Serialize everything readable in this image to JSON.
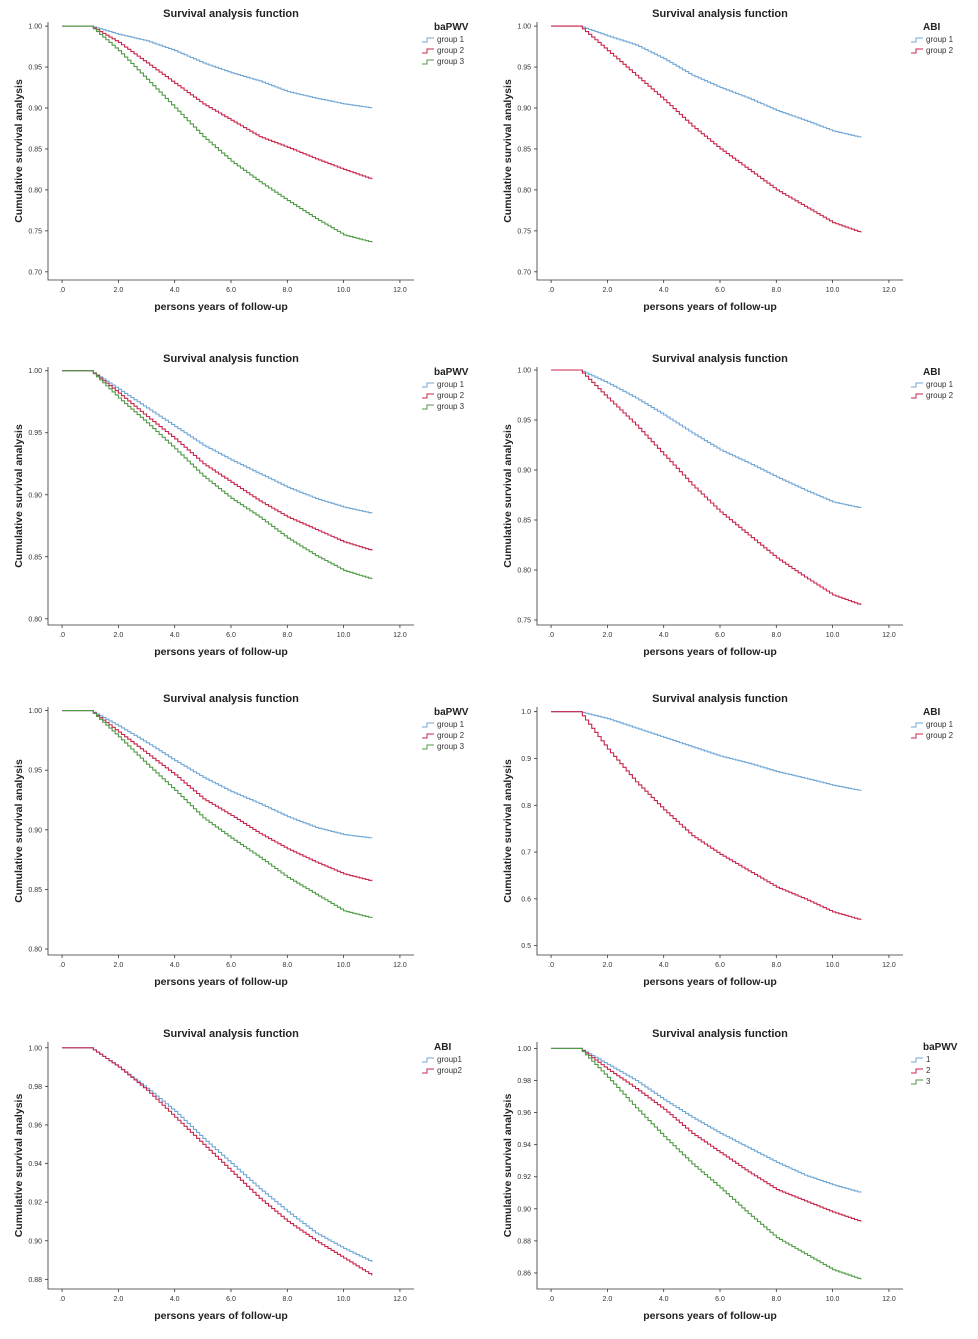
{
  "figure": {
    "description_free": true
  },
  "colors": {
    "group1": "#6fa6d6",
    "group2": "#c8254a",
    "group3": "#4f9a45",
    "axis": "#333333"
  },
  "chart_data": [
    {
      "type": "line",
      "title": "Survival analysis function",
      "xlabel": "persons years of follow-up",
      "ylabel": "Cumulative survival analysis",
      "xlim": [
        -0.5,
        12.5
      ],
      "ylim": [
        0.69,
        1.005
      ],
      "xticks": [
        ".0",
        "2.0",
        "4.0",
        "6.0",
        "8.0",
        "10.0",
        "12.0"
      ],
      "yticks": [
        0.7,
        0.75,
        0.8,
        0.85,
        0.9,
        0.95,
        1.0
      ],
      "ytick_labels": [
        "0.70",
        "0.75",
        "0.80",
        "0.85",
        "0.90",
        "0.95",
        "1.00"
      ],
      "legend_title": "baPWV",
      "legend_position": "top-right-outside",
      "series": [
        {
          "name": "group 1",
          "color": "group1",
          "x": [
            0,
            1,
            2,
            3,
            4,
            5,
            6,
            7,
            8,
            9,
            10,
            11
          ],
          "y": [
            1.0,
            1.0,
            0.99,
            0.982,
            0.97,
            0.955,
            0.943,
            0.933,
            0.92,
            0.912,
            0.905,
            0.9
          ]
        },
        {
          "name": "group 2",
          "color": "group2",
          "x": [
            0,
            1,
            2,
            3,
            4,
            5,
            6,
            7,
            8,
            9,
            10,
            11
          ],
          "y": [
            1.0,
            1.0,
            0.98,
            0.955,
            0.93,
            0.905,
            0.885,
            0.865,
            0.852,
            0.838,
            0.825,
            0.813
          ]
        },
        {
          "name": "group 3",
          "color": "group3",
          "x": [
            0,
            1,
            2,
            3,
            4,
            5,
            6,
            7,
            8,
            9,
            10,
            11
          ],
          "y": [
            1.0,
            1.0,
            0.97,
            0.935,
            0.9,
            0.865,
            0.835,
            0.81,
            0.787,
            0.765,
            0.745,
            0.736
          ]
        }
      ]
    },
    {
      "type": "line",
      "title": "Survival analysis function",
      "xlabel": "persons years of follow-up",
      "ylabel": "Cumulative survival analysis",
      "xlim": [
        -0.5,
        12.5
      ],
      "ylim": [
        0.69,
        1.005
      ],
      "xticks": [
        ".0",
        "2.0",
        "4.0",
        "6.0",
        "8.0",
        "10.0",
        "12.0"
      ],
      "yticks": [
        0.7,
        0.75,
        0.8,
        0.85,
        0.9,
        0.95,
        1.0
      ],
      "ytick_labels": [
        "0.70",
        "0.75",
        "0.80",
        "0.85",
        "0.90",
        "0.95",
        "1.00"
      ],
      "legend_title": "ABI",
      "legend_position": "top-right-outside",
      "series": [
        {
          "name": "group 1",
          "color": "group1",
          "x": [
            0,
            1,
            2,
            3,
            4,
            5,
            6,
            7,
            8,
            9,
            10,
            11
          ],
          "y": [
            1.0,
            1.0,
            0.988,
            0.977,
            0.96,
            0.94,
            0.925,
            0.912,
            0.897,
            0.885,
            0.872,
            0.864
          ]
        },
        {
          "name": "group 2",
          "color": "group2",
          "x": [
            0,
            1,
            2,
            3,
            4,
            5,
            6,
            7,
            8,
            9,
            10,
            11
          ],
          "y": [
            1.0,
            1.0,
            0.97,
            0.94,
            0.91,
            0.878,
            0.85,
            0.825,
            0.8,
            0.78,
            0.76,
            0.748
          ]
        }
      ]
    },
    {
      "type": "line",
      "title": "Survival analysis function",
      "xlabel": "persons years of follow-up",
      "ylabel": "Cumulative survival analysis",
      "xlim": [
        -0.5,
        12.5
      ],
      "ylim": [
        0.795,
        1.003
      ],
      "xticks": [
        ".0",
        "2.0",
        "4.0",
        "6.0",
        "8.0",
        "10.0",
        "12.0"
      ],
      "yticks": [
        0.8,
        0.85,
        0.9,
        0.95,
        1.0
      ],
      "ytick_labels": [
        "0.80",
        "0.85",
        "0.90",
        "0.95",
        "1.00"
      ],
      "legend_title": "baPWV",
      "legend_position": "top-right-outside",
      "series": [
        {
          "name": "group 1",
          "color": "group1",
          "x": [
            0,
            1,
            2,
            3,
            4,
            5,
            6,
            7,
            8,
            9,
            10,
            11
          ],
          "y": [
            1.0,
            1.0,
            0.985,
            0.97,
            0.955,
            0.94,
            0.928,
            0.917,
            0.906,
            0.897,
            0.89,
            0.885
          ]
        },
        {
          "name": "group 2",
          "color": "group2",
          "x": [
            0,
            1,
            2,
            3,
            4,
            5,
            6,
            7,
            8,
            9,
            10,
            11
          ],
          "y": [
            1.0,
            1.0,
            0.982,
            0.963,
            0.945,
            0.925,
            0.91,
            0.895,
            0.882,
            0.872,
            0.862,
            0.855
          ]
        },
        {
          "name": "group 3",
          "color": "group3",
          "x": [
            0,
            1,
            2,
            3,
            4,
            5,
            6,
            7,
            8,
            9,
            10,
            11
          ],
          "y": [
            1.0,
            1.0,
            0.978,
            0.958,
            0.937,
            0.915,
            0.897,
            0.882,
            0.865,
            0.851,
            0.839,
            0.832
          ]
        }
      ]
    },
    {
      "type": "line",
      "title": "Survival analysis function",
      "xlabel": "persons years of follow-up",
      "ylabel": "Cumulative survival analysis",
      "xlim": [
        -0.5,
        12.5
      ],
      "ylim": [
        0.745,
        1.003
      ],
      "xticks": [
        ".0",
        "2.0",
        "4.0",
        "6.0",
        "8.0",
        "10.0",
        "12.0"
      ],
      "yticks": [
        0.75,
        0.8,
        0.85,
        0.9,
        0.95,
        1.0
      ],
      "ytick_labels": [
        "0.75",
        "0.80",
        "0.85",
        "0.90",
        "0.95",
        "1.00"
      ],
      "legend_title": "ABI",
      "legend_position": "top-right-outside",
      "series": [
        {
          "name": "group 1",
          "color": "group1",
          "x": [
            0,
            1,
            2,
            3,
            4,
            5,
            6,
            7,
            8,
            9,
            10,
            11
          ],
          "y": [
            1.0,
            1.0,
            0.987,
            0.972,
            0.955,
            0.937,
            0.92,
            0.907,
            0.893,
            0.88,
            0.868,
            0.862
          ]
        },
        {
          "name": "group 2",
          "color": "group2",
          "x": [
            0,
            1,
            2,
            3,
            4,
            5,
            6,
            7,
            8,
            9,
            10,
            11
          ],
          "y": [
            1.0,
            1.0,
            0.972,
            0.945,
            0.915,
            0.885,
            0.858,
            0.835,
            0.812,
            0.793,
            0.775,
            0.765
          ]
        }
      ]
    },
    {
      "type": "line",
      "title": "Survival analysis function",
      "xlabel": "persons years of follow-up",
      "ylabel": "Cumulative survival analysis",
      "xlim": [
        -0.5,
        12.5
      ],
      "ylim": [
        0.795,
        1.003
      ],
      "xticks": [
        ".0",
        "2.0",
        "4.0",
        "6.0",
        "8.0",
        "10.0",
        "12.0"
      ],
      "yticks": [
        0.8,
        0.85,
        0.9,
        0.95,
        1.0
      ],
      "ytick_labels": [
        "0.80",
        "0.85",
        "0.90",
        "0.95",
        "1.00"
      ],
      "legend_title": "baPWV",
      "legend_position": "top-right-outside",
      "series": [
        {
          "name": "group 1",
          "color": "group1",
          "x": [
            0,
            1,
            2,
            3,
            4,
            5,
            6,
            7,
            8,
            9,
            10,
            11
          ],
          "y": [
            1.0,
            1.0,
            0.987,
            0.973,
            0.958,
            0.944,
            0.932,
            0.922,
            0.911,
            0.902,
            0.896,
            0.893
          ]
        },
        {
          "name": "group 2",
          "color": "group2",
          "x": [
            0,
            1,
            2,
            3,
            4,
            5,
            6,
            7,
            8,
            9,
            10,
            11
          ],
          "y": [
            1.0,
            1.0,
            0.982,
            0.964,
            0.946,
            0.926,
            0.912,
            0.897,
            0.884,
            0.873,
            0.863,
            0.857
          ]
        },
        {
          "name": "group 3",
          "color": "group3",
          "x": [
            0,
            1,
            2,
            3,
            4,
            5,
            6,
            7,
            8,
            9,
            10,
            11
          ],
          "y": [
            1.0,
            1.0,
            0.978,
            0.955,
            0.933,
            0.91,
            0.893,
            0.877,
            0.86,
            0.846,
            0.832,
            0.826
          ]
        }
      ]
    },
    {
      "type": "line",
      "title": "Survival analysis function",
      "xlabel": "persons years of follow-up",
      "ylabel": "Cumulative survival analysis",
      "xlim": [
        -0.5,
        12.5
      ],
      "ylim": [
        0.48,
        1.01
      ],
      "xticks": [
        ".0",
        "2.0",
        "4.0",
        "6.0",
        "8.0",
        "10.0",
        "12.0"
      ],
      "yticks": [
        0.5,
        0.6,
        0.7,
        0.8,
        0.9,
        1.0
      ],
      "ytick_labels": [
        "0.5",
        "0.6",
        "0.7",
        "0.8",
        "0.9",
        "1.0"
      ],
      "legend_title": "ABI",
      "legend_position": "top-right-outside",
      "series": [
        {
          "name": "group 1",
          "color": "group1",
          "x": [
            0,
            1,
            2,
            3,
            4,
            5,
            6,
            7,
            8,
            9,
            10,
            11
          ],
          "y": [
            1.0,
            1.0,
            0.985,
            0.965,
            0.945,
            0.925,
            0.905,
            0.89,
            0.872,
            0.858,
            0.843,
            0.831
          ]
        },
        {
          "name": "group 2",
          "color": "group2",
          "x": [
            0,
            1,
            2,
            3,
            4,
            5,
            6,
            7,
            8,
            9,
            10,
            11
          ],
          "y": [
            1.0,
            1.0,
            0.92,
            0.85,
            0.79,
            0.735,
            0.695,
            0.66,
            0.625,
            0.6,
            0.572,
            0.555
          ]
        }
      ]
    },
    {
      "type": "line",
      "title": "Survival analysis function",
      "xlabel": "persons years of follow-up",
      "ylabel": "Cumulative survival analysis",
      "xlim": [
        -0.5,
        12.5
      ],
      "ylim": [
        0.875,
        1.003
      ],
      "xticks": [
        ".0",
        "2.0",
        "4.0",
        "6.0",
        "8.0",
        "10.0",
        "12.0"
      ],
      "yticks": [
        0.88,
        0.9,
        0.92,
        0.94,
        0.96,
        0.98,
        1.0
      ],
      "ytick_labels": [
        "0.88",
        "0.90",
        "0.92",
        "0.94",
        "0.96",
        "0.98",
        "1.00"
      ],
      "legend_title": "ABI",
      "legend_position": "top-right-outside",
      "series": [
        {
          "name": "group1",
          "color": "group1",
          "x": [
            0,
            1,
            2,
            3,
            4,
            5,
            6,
            7,
            8,
            9,
            10,
            11
          ],
          "y": [
            1.0,
            1.0,
            0.99,
            0.979,
            0.967,
            0.953,
            0.94,
            0.927,
            0.915,
            0.904,
            0.896,
            0.889
          ]
        },
        {
          "name": "group2",
          "color": "group2",
          "x": [
            0,
            1,
            2,
            3,
            4,
            5,
            6,
            7,
            8,
            9,
            10,
            11
          ],
          "y": [
            1.0,
            1.0,
            0.99,
            0.978,
            0.964,
            0.95,
            0.936,
            0.922,
            0.91,
            0.9,
            0.891,
            0.882
          ]
        }
      ]
    },
    {
      "type": "line",
      "title": "Survival analysis function",
      "xlabel": "persons years of follow-up",
      "ylabel": "Cumulative survival analysis",
      "xlim": [
        -0.5,
        12.5
      ],
      "ylim": [
        0.85,
        1.004
      ],
      "xticks": [
        ".0",
        "2.0",
        "4.0",
        "6.0",
        "8.0",
        "10.0",
        "12.0"
      ],
      "yticks": [
        0.86,
        0.88,
        0.9,
        0.92,
        0.94,
        0.96,
        0.98,
        1.0
      ],
      "ytick_labels": [
        "0.86",
        "0.88",
        "0.90",
        "0.92",
        "0.94",
        "0.96",
        "0.98",
        "1.00"
      ],
      "legend_title": "baPWV",
      "legend_position": "top-right-outside",
      "series": [
        {
          "name": "1",
          "color": "group1",
          "x": [
            0,
            1,
            2,
            3,
            4,
            5,
            6,
            7,
            8,
            9,
            10,
            11
          ],
          "y": [
            1.0,
            1.0,
            0.99,
            0.98,
            0.968,
            0.957,
            0.947,
            0.938,
            0.929,
            0.921,
            0.915,
            0.91
          ]
        },
        {
          "name": "2",
          "color": "group2",
          "x": [
            0,
            1,
            2,
            3,
            4,
            5,
            6,
            7,
            8,
            9,
            10,
            11
          ],
          "y": [
            1.0,
            1.0,
            0.987,
            0.975,
            0.962,
            0.947,
            0.935,
            0.923,
            0.912,
            0.905,
            0.898,
            0.892
          ]
        },
        {
          "name": "3",
          "color": "group3",
          "x": [
            0,
            1,
            2,
            3,
            4,
            5,
            6,
            7,
            8,
            9,
            10,
            11
          ],
          "y": [
            1.0,
            1.0,
            0.982,
            0.963,
            0.945,
            0.928,
            0.913,
            0.897,
            0.882,
            0.872,
            0.862,
            0.856
          ]
        }
      ]
    }
  ]
}
